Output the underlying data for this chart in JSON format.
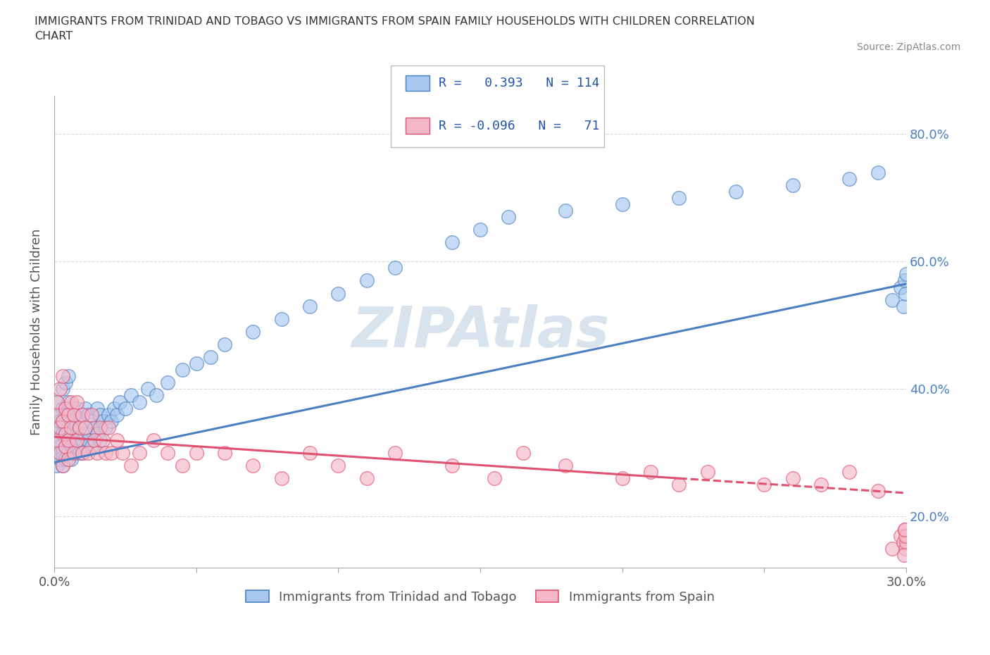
{
  "title": "IMMIGRANTS FROM TRINIDAD AND TOBAGO VS IMMIGRANTS FROM SPAIN FAMILY HOUSEHOLDS WITH CHILDREN CORRELATION\nCHART",
  "source_text": "Source: ZipAtlas.com",
  "ylabel": "Family Households with Children",
  "xlim": [
    0.0,
    0.3
  ],
  "ylim": [
    0.12,
    0.86
  ],
  "ytick_positions": [
    0.2,
    0.4,
    0.6,
    0.8
  ],
  "ytick_labels": [
    "20.0%",
    "40.0%",
    "60.0%",
    "80.0%"
  ],
  "series1_color": "#a8c8f0",
  "series2_color": "#f5b8c8",
  "line1_color": "#4a7fc1",
  "line2_color": "#e05070",
  "watermark": "ZIPAtlas",
  "watermark_color": "#b8cce0",
  "series1_label": "Immigrants from Trinidad and Tobago",
  "series2_label": "Immigrants from Spain",
  "trend1_x": [
    0.0,
    0.3
  ],
  "trend1_y": [
    0.285,
    0.565
  ],
  "trend2_x": [
    0.0,
    0.22
  ],
  "trend2_y": [
    0.325,
    0.26
  ],
  "background_color": "#ffffff",
  "grid_color": "#d8d8d8",
  "title_color": "#333333",
  "axis_color": "#555555",
  "legend_text_color": "#2255aa",
  "series1_x": [
    0.001,
    0.001,
    0.001,
    0.001,
    0.001,
    0.002,
    0.002,
    0.002,
    0.002,
    0.002,
    0.003,
    0.003,
    0.003,
    0.003,
    0.003,
    0.003,
    0.004,
    0.004,
    0.004,
    0.004,
    0.004,
    0.004,
    0.005,
    0.005,
    0.005,
    0.005,
    0.005,
    0.005,
    0.006,
    0.006,
    0.006,
    0.006,
    0.007,
    0.007,
    0.007,
    0.007,
    0.008,
    0.008,
    0.008,
    0.009,
    0.009,
    0.01,
    0.01,
    0.01,
    0.011,
    0.011,
    0.012,
    0.012,
    0.013,
    0.013,
    0.014,
    0.015,
    0.015,
    0.016,
    0.016,
    0.017,
    0.018,
    0.019,
    0.02,
    0.021,
    0.022,
    0.023,
    0.025,
    0.027,
    0.03,
    0.033,
    0.036,
    0.04,
    0.045,
    0.05,
    0.055,
    0.06,
    0.07,
    0.08,
    0.09,
    0.1,
    0.11,
    0.12,
    0.14,
    0.15,
    0.16,
    0.18,
    0.2,
    0.22,
    0.24,
    0.26,
    0.28,
    0.29,
    0.295,
    0.298,
    0.299,
    0.2995,
    0.2998,
    0.2999
  ],
  "series1_y": [
    0.3,
    0.34,
    0.28,
    0.38,
    0.33,
    0.32,
    0.36,
    0.29,
    0.35,
    0.31,
    0.28,
    0.33,
    0.37,
    0.3,
    0.35,
    0.4,
    0.29,
    0.33,
    0.37,
    0.31,
    0.36,
    0.41,
    0.3,
    0.34,
    0.38,
    0.32,
    0.36,
    0.42,
    0.31,
    0.35,
    0.29,
    0.33,
    0.32,
    0.36,
    0.3,
    0.34,
    0.33,
    0.37,
    0.31,
    0.34,
    0.3,
    0.32,
    0.36,
    0.3,
    0.33,
    0.37,
    0.32,
    0.36,
    0.31,
    0.35,
    0.34,
    0.33,
    0.37,
    0.32,
    0.36,
    0.35,
    0.34,
    0.36,
    0.35,
    0.37,
    0.36,
    0.38,
    0.37,
    0.39,
    0.38,
    0.4,
    0.39,
    0.41,
    0.43,
    0.44,
    0.45,
    0.47,
    0.49,
    0.51,
    0.53,
    0.55,
    0.57,
    0.59,
    0.63,
    0.65,
    0.67,
    0.68,
    0.69,
    0.7,
    0.71,
    0.72,
    0.73,
    0.74,
    0.54,
    0.56,
    0.53,
    0.57,
    0.55,
    0.58
  ],
  "series2_x": [
    0.001,
    0.001,
    0.001,
    0.002,
    0.002,
    0.002,
    0.003,
    0.003,
    0.003,
    0.004,
    0.004,
    0.004,
    0.005,
    0.005,
    0.005,
    0.006,
    0.006,
    0.007,
    0.007,
    0.008,
    0.008,
    0.009,
    0.01,
    0.01,
    0.011,
    0.012,
    0.013,
    0.014,
    0.015,
    0.016,
    0.017,
    0.018,
    0.019,
    0.02,
    0.022,
    0.024,
    0.027,
    0.03,
    0.035,
    0.04,
    0.045,
    0.05,
    0.06,
    0.07,
    0.08,
    0.09,
    0.1,
    0.11,
    0.12,
    0.14,
    0.155,
    0.165,
    0.18,
    0.2,
    0.21,
    0.22,
    0.23,
    0.25,
    0.26,
    0.27,
    0.28,
    0.29,
    0.295,
    0.298,
    0.299,
    0.2995,
    0.2998,
    0.2999,
    0.2997,
    0.2996,
    0.2993
  ],
  "series2_y": [
    0.36,
    0.32,
    0.38,
    0.34,
    0.3,
    0.4,
    0.28,
    0.35,
    0.42,
    0.31,
    0.37,
    0.33,
    0.29,
    0.36,
    0.32,
    0.34,
    0.38,
    0.3,
    0.36,
    0.32,
    0.38,
    0.34,
    0.3,
    0.36,
    0.34,
    0.3,
    0.36,
    0.32,
    0.3,
    0.34,
    0.32,
    0.3,
    0.34,
    0.3,
    0.32,
    0.3,
    0.28,
    0.3,
    0.32,
    0.3,
    0.28,
    0.3,
    0.3,
    0.28,
    0.26,
    0.3,
    0.28,
    0.26,
    0.3,
    0.28,
    0.26,
    0.3,
    0.28,
    0.26,
    0.27,
    0.25,
    0.27,
    0.25,
    0.26,
    0.25,
    0.27,
    0.24,
    0.15,
    0.17,
    0.16,
    0.18,
    0.15,
    0.16,
    0.17,
    0.18,
    0.14
  ]
}
